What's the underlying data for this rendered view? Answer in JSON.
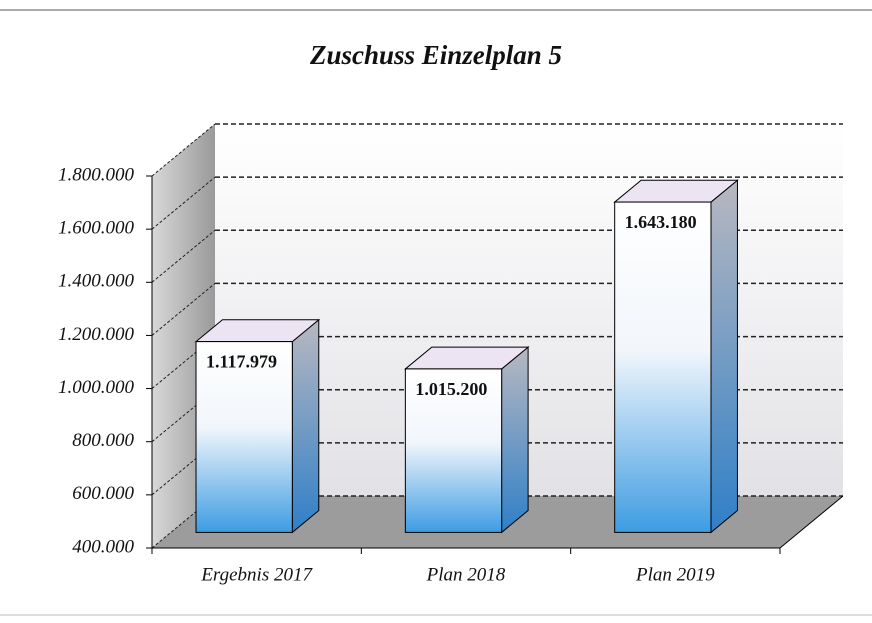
{
  "chart_data": {
    "type": "bar",
    "title": "Zuschuss Einzelplan 5",
    "categories": [
      "Ergebnis 2017",
      "Plan 2018",
      "Plan 2019"
    ],
    "values": [
      1117979,
      1015200,
      1643180
    ],
    "value_labels": [
      "1.117.979",
      "1.015.200",
      "1.643.180"
    ],
    "ylim": [
      400000,
      1800000
    ],
    "yticks": [
      {
        "value": 400000,
        "label": "400.000"
      },
      {
        "value": 600000,
        "label": "600.000"
      },
      {
        "value": 800000,
        "label": "800.000"
      },
      {
        "value": 1000000,
        "label": "1.000.000"
      },
      {
        "value": 1200000,
        "label": "1.200.000"
      },
      {
        "value": 1400000,
        "label": "1.400.000"
      },
      {
        "value": 1600000,
        "label": "1.600.000"
      },
      {
        "value": 1800000,
        "label": "1.800.000"
      }
    ],
    "grid": true
  }
}
